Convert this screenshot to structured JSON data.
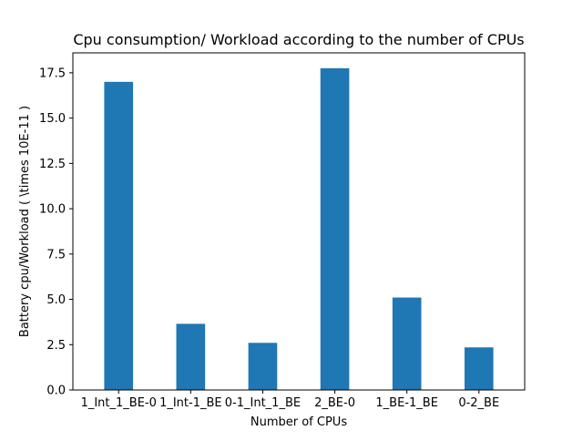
{
  "chart_data": {
    "type": "bar",
    "title": "Cpu consumption/ Workload according to the number of CPUs",
    "xlabel": "Number of CPUs",
    "ylabel": "Battery cpu/Workload ( \\times 10E-11 )",
    "categories": [
      "1_Int_1_BE-0",
      "1_Int-1_BE",
      "0-1_Int_1_BE",
      "2_BE-0",
      "1_BE-1_BE",
      "0-2_BE"
    ],
    "values": [
      17.0,
      3.65,
      2.6,
      17.75,
      5.1,
      2.35
    ],
    "ylim": [
      0,
      18.6
    ],
    "yticks": [
      "0.0",
      "2.5",
      "5.0",
      "7.5",
      "10.0",
      "12.5",
      "15.0",
      "17.5"
    ],
    "bar_color": "#1f77b4",
    "grid": false,
    "legend": "none"
  }
}
